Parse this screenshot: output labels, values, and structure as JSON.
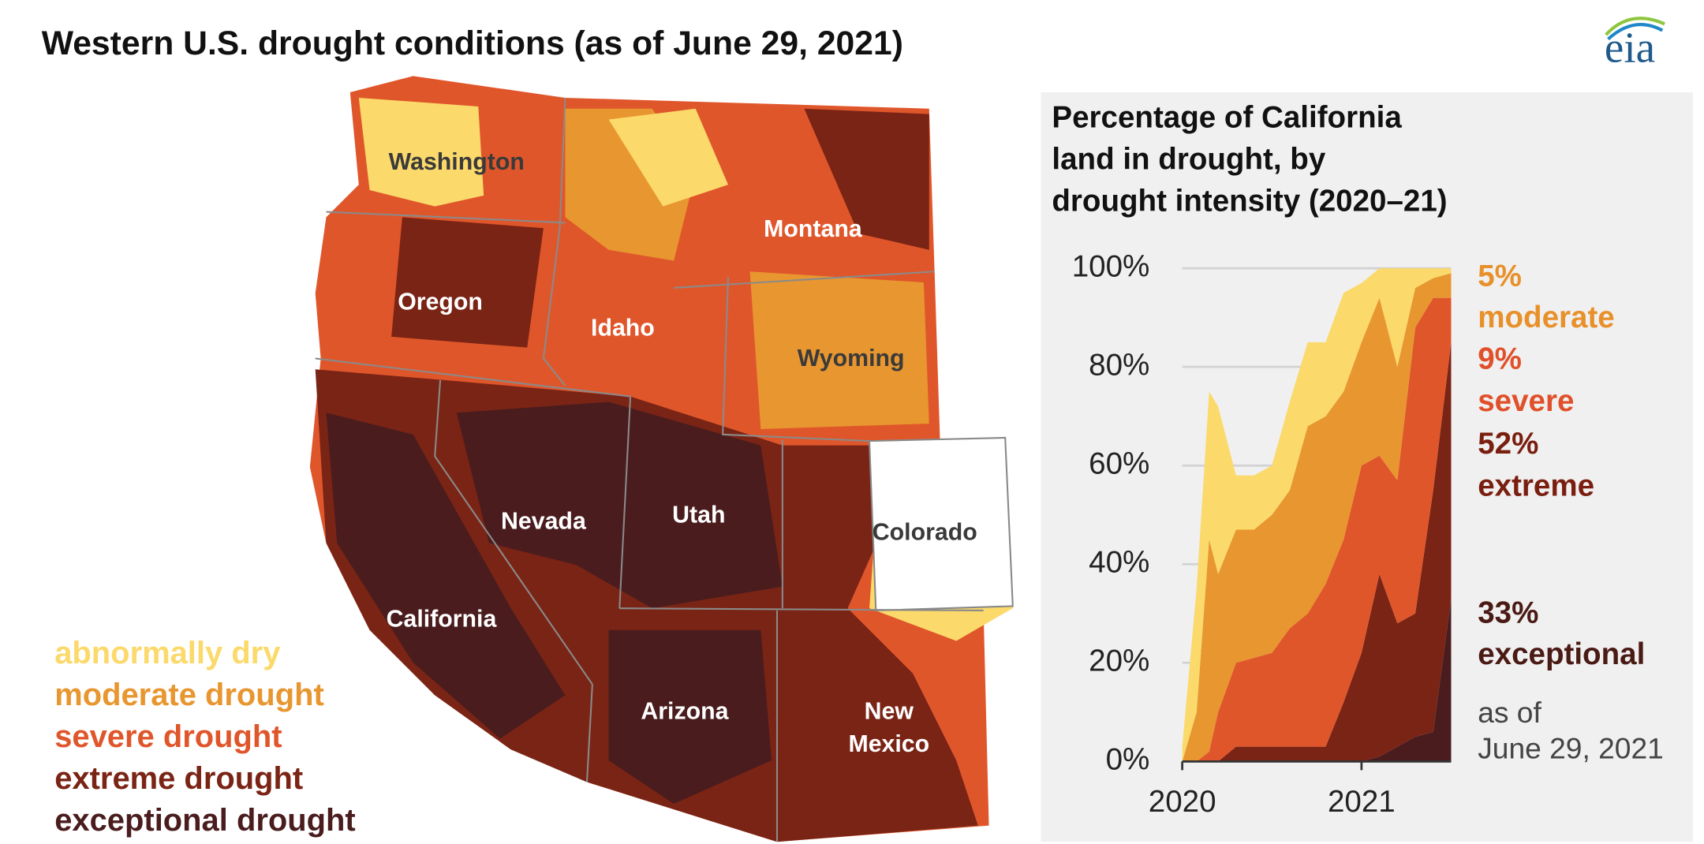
{
  "title": "Western U.S. drought conditions (as of June 29, 2021)",
  "logo": "eia",
  "map": {
    "states": [
      {
        "name": "Washington",
        "color": "#3a3a3a"
      },
      {
        "name": "Oregon",
        "color": "#ffffff"
      },
      {
        "name": "Idaho",
        "color": "#ffffff"
      },
      {
        "name": "Montana",
        "color": "#ffffff"
      },
      {
        "name": "Wyoming",
        "color": "#3a3a3a"
      },
      {
        "name": "Nevada",
        "color": "#ffffff"
      },
      {
        "name": "Utah",
        "color": "#ffffff"
      },
      {
        "name": "Colorado",
        "color": "#3a3a3a"
      },
      {
        "name": "California",
        "color": "#ffffff"
      },
      {
        "name": "Arizona",
        "color": "#ffffff"
      },
      {
        "name": "New Mexico",
        "color": "#ffffff"
      }
    ]
  },
  "chart_data": {
    "type": "stacked-area",
    "title_lines": [
      "Percentage of California",
      "land in drought, by",
      "drought intensity (2020–21)"
    ],
    "x": [
      2020.0,
      2020.08,
      2020.15,
      2020.2,
      2020.3,
      2020.4,
      2020.5,
      2020.6,
      2020.7,
      2020.8,
      2020.9,
      2021.0,
      2021.1,
      2021.2,
      2021.3,
      2021.4,
      2021.5
    ],
    "xlim": [
      2020,
      2021.5
    ],
    "xticks": [
      2020,
      2021
    ],
    "ylim": [
      0,
      100
    ],
    "yticks": [
      {
        "value": 0,
        "label": "0%"
      },
      {
        "value": 20,
        "label": "20%"
      },
      {
        "value": 40,
        "label": "40%"
      },
      {
        "value": 60,
        "label": "60%"
      },
      {
        "value": 80,
        "label": "80%"
      },
      {
        "value": 100,
        "label": "100%"
      }
    ],
    "grid": true,
    "series": [
      {
        "name": "abnormally dry",
        "color": "#fbd96a",
        "values": [
          3,
          25,
          30,
          34,
          11,
          11,
          10,
          18,
          17,
          15,
          20,
          12,
          6,
          20,
          4,
          2,
          1
        ]
      },
      {
        "name": "moderate drought",
        "color": "#e8962f",
        "values": [
          0,
          10,
          43,
          28,
          27,
          26,
          28,
          28,
          38,
          34,
          30,
          25,
          32,
          23,
          8,
          4,
          5
        ]
      },
      {
        "name": "severe drought",
        "color": "#e0562b",
        "values": [
          0,
          0,
          2,
          10,
          17,
          18,
          19,
          24,
          27,
          33,
          33,
          38,
          24,
          29,
          58,
          39,
          9
        ]
      },
      {
        "name": "extreme drought",
        "color": "#7a2415",
        "values": [
          0,
          0,
          0,
          0,
          3,
          3,
          3,
          3,
          3,
          3,
          12,
          22,
          37,
          25,
          25,
          49,
          52
        ]
      },
      {
        "name": "exceptional drought",
        "color": "#4a1c1e",
        "values": [
          0,
          0,
          0,
          0,
          0,
          0,
          0,
          0,
          0,
          0,
          0,
          0,
          1,
          3,
          5,
          6,
          33
        ]
      }
    ],
    "annotations": [
      {
        "label": "5%",
        "name": "moderate",
        "color": "#e8902a"
      },
      {
        "label": "9%",
        "name": "severe",
        "color": "#e0502a"
      },
      {
        "label": "52%",
        "name": "extreme",
        "color": "#7a1f10"
      },
      {
        "label": "33%",
        "name": "exceptional",
        "color": "#4a1a14"
      }
    ],
    "note_lines": [
      "as of",
      "June 29, 2021"
    ]
  }
}
